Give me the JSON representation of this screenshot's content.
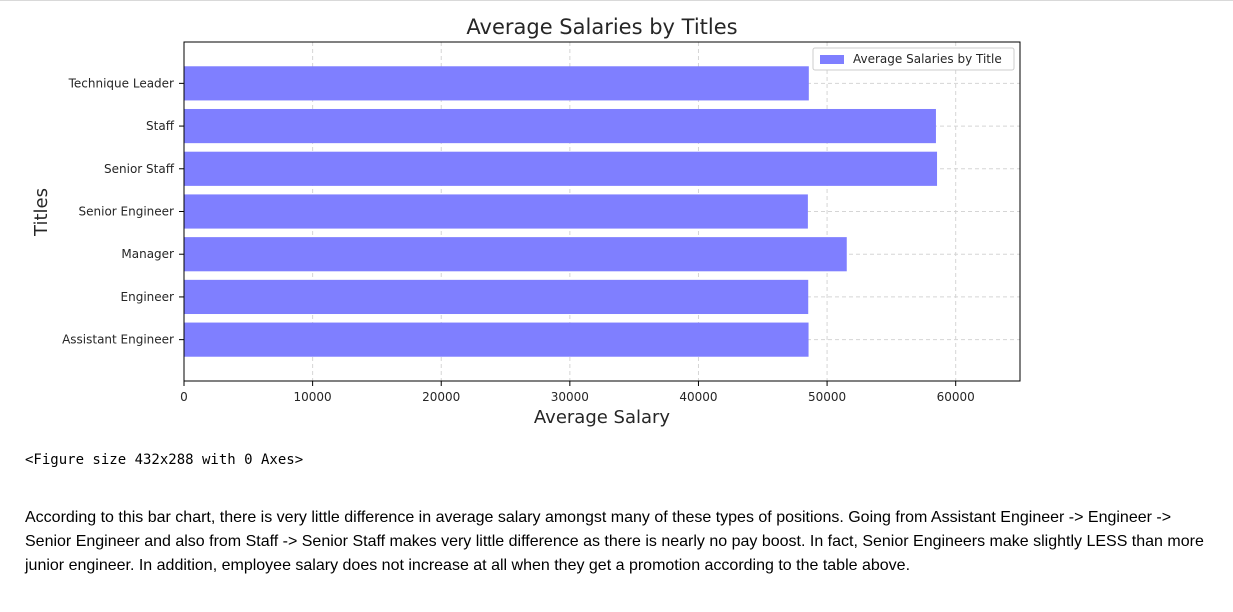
{
  "chart_data": {
    "type": "bar",
    "orientation": "horizontal",
    "title": "Average Salaries by Titles",
    "xlabel": "Average Salary",
    "ylabel": "Titles",
    "categories": [
      "Assistant Engineer",
      "Engineer",
      "Manager",
      "Senior Engineer",
      "Senior Staff",
      "Staff",
      "Technique Leader"
    ],
    "series": [
      {
        "name": "Average Salaries by Title",
        "values": [
          48560,
          48535,
          51530,
          48507,
          58550,
          58465,
          48580
        ],
        "color": "#7f7fff"
      }
    ],
    "xlim": [
      0,
      65000
    ],
    "xticks": [
      "0",
      "10000",
      "20000",
      "30000",
      "40000",
      "50000",
      "60000"
    ],
    "grid": true,
    "legend": "upper right"
  },
  "output": {
    "figure_caption": "<Figure size 432x288 with 0 Axes>",
    "note": "According to this bar chart, there is very little difference in average salary amongst many of these types of positions. Going from Assistant Engineer -> Engineer -> Senior Engineer and also from Staff -> Senior Staff makes very little difference as there is nearly no pay boost. In fact, Senior Engineers make slightly LESS than more junior engineer. In addition, employee salary does not increase at all when they get a promotion according to the table above."
  }
}
